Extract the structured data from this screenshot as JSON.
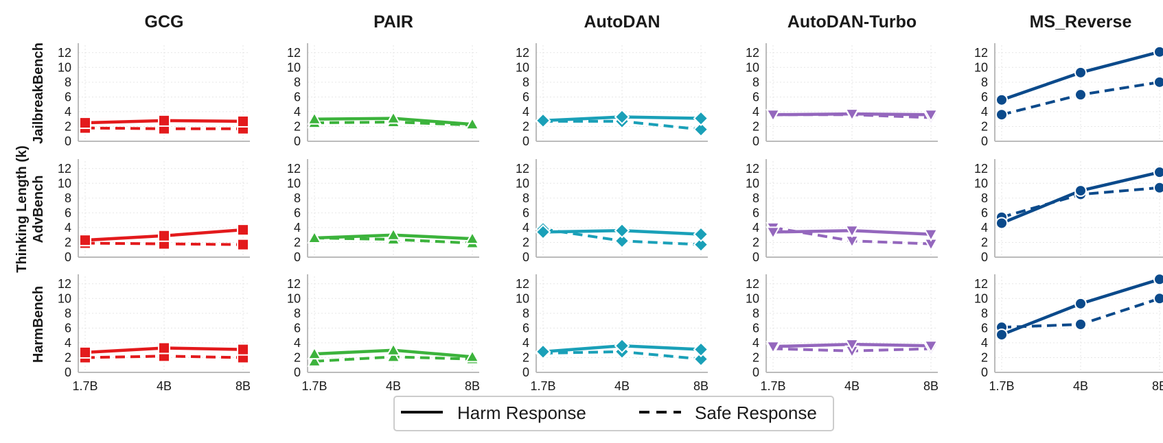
{
  "chart_data": {
    "type": "line",
    "y_axis_label": "Thinking Length (k)",
    "x_categories": [
      "1.7B",
      "4B",
      "8B"
    ],
    "y_ticks": [
      0,
      2,
      4,
      6,
      8,
      10,
      12
    ],
    "ylim": [
      0,
      13
    ],
    "grid": true,
    "legend": {
      "placement": "bottom-center",
      "entries": [
        {
          "label": "Harm Response",
          "style": "solid"
        },
        {
          "label": "Safe Response",
          "style": "dashed"
        }
      ]
    },
    "columns": [
      {
        "title": "GCG",
        "color": "#e31a1c",
        "marker": "square"
      },
      {
        "title": "PAIR",
        "color": "#3cb33c",
        "marker": "triangle-up"
      },
      {
        "title": "AutoDAN",
        "color": "#1aa0b8",
        "marker": "diamond"
      },
      {
        "title": "AutoDAN-Turbo",
        "color": "#9467bd",
        "marker": "triangle-down"
      },
      {
        "title": "MS_Reverse",
        "color": "#0b4a8b",
        "marker": "circle"
      }
    ],
    "rows": [
      {
        "label": "JailbreakBench",
        "panels": [
          {
            "harm": [
              2.5,
              2.8,
              2.7
            ],
            "safe": [
              1.8,
              1.7,
              1.7
            ]
          },
          {
            "harm": [
              3.0,
              3.1,
              2.3
            ],
            "safe": [
              2.5,
              2.6,
              2.2
            ]
          },
          {
            "harm": [
              2.8,
              3.3,
              3.1
            ],
            "safe": [
              2.7,
              2.7,
              1.6
            ]
          },
          {
            "harm": [
              3.6,
              3.7,
              3.6
            ],
            "safe": [
              3.6,
              3.6,
              3.2
            ]
          },
          {
            "harm": [
              5.6,
              9.3,
              12.1
            ],
            "safe": [
              3.6,
              6.3,
              8.0
            ]
          }
        ]
      },
      {
        "label": "AdvBench",
        "panels": [
          {
            "harm": [
              2.3,
              2.9,
              3.7
            ],
            "safe": [
              1.9,
              1.8,
              1.7
            ]
          },
          {
            "harm": [
              2.6,
              3.0,
              2.5
            ],
            "safe": [
              2.6,
              2.4,
              1.9
            ]
          },
          {
            "harm": [
              3.4,
              3.6,
              3.1
            ],
            "safe": [
              3.8,
              2.2,
              1.7
            ]
          },
          {
            "harm": [
              3.4,
              3.6,
              3.1
            ],
            "safe": [
              4.0,
              2.2,
              1.8
            ]
          },
          {
            "harm": [
              4.6,
              9.0,
              11.5
            ],
            "safe": [
              5.4,
              8.5,
              9.4
            ]
          }
        ]
      },
      {
        "label": "HarmBench",
        "panels": [
          {
            "harm": [
              2.7,
              3.3,
              3.1
            ],
            "safe": [
              2.0,
              2.2,
              2.0
            ]
          },
          {
            "harm": [
              2.5,
              3.0,
              2.1
            ],
            "safe": [
              1.5,
              2.1,
              1.8
            ]
          },
          {
            "harm": [
              2.8,
              3.6,
              3.1
            ],
            "safe": [
              2.6,
              2.8,
              1.8
            ]
          },
          {
            "harm": [
              3.5,
              3.8,
              3.6
            ],
            "safe": [
              3.2,
              2.9,
              3.2
            ]
          },
          {
            "harm": [
              5.1,
              9.3,
              12.6
            ],
            "safe": [
              6.1,
              6.5,
              10.0
            ]
          }
        ]
      }
    ]
  }
}
